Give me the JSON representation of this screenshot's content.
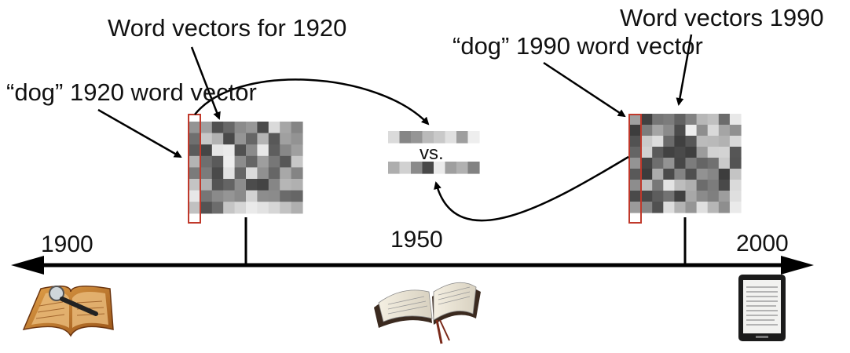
{
  "labels": {
    "word_vectors_1920": "Word vectors for 1920",
    "dog_1920": "“dog” 1920 word vector",
    "word_vectors_1990": "Word vectors 1990",
    "dog_1990": "“dog” 1990 word vector",
    "vs": "vs."
  },
  "timeline": {
    "years": [
      "1900",
      "1950",
      "2000"
    ]
  },
  "icons": [
    "old-book-magnifier-icon",
    "open-bible-icon",
    "ereader-icon"
  ],
  "colors": {
    "highlight": "#c0392b",
    "axis": "#000000"
  }
}
